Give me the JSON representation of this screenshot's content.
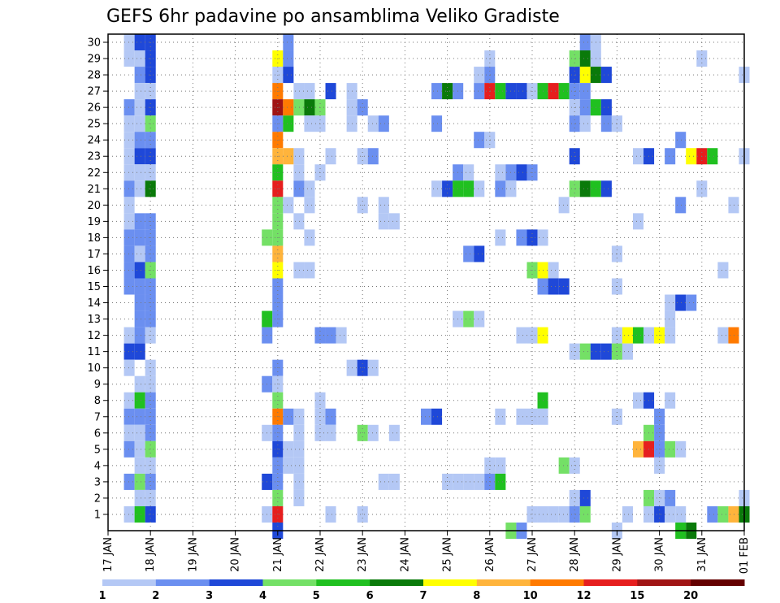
{
  "chart_data": {
    "type": "heatmap",
    "title": "GEFS 6hr padavine po ansamblima Veliko Gradiste",
    "x_tick_labels": [
      "17 JAN",
      "18 JAN",
      "19 JAN",
      "20 JAN",
      "21 JAN",
      "22 JAN",
      "23 JAN",
      "24 JAN",
      "25 JAN",
      "26 JAN",
      "27 JAN",
      "28 JAN",
      "29 JAN",
      "30 JAN",
      "31 JAN",
      "01 FEB"
    ],
    "x_range_days": [
      17,
      32
    ],
    "x_step_hours": 6,
    "y_tick_labels": [
      1,
      2,
      3,
      4,
      5,
      6,
      7,
      8,
      9,
      10,
      11,
      12,
      13,
      14,
      15,
      16,
      17,
      18,
      19,
      20,
      21,
      22,
      23,
      24,
      25,
      26,
      27,
      28,
      29,
      30
    ],
    "grid": true,
    "colorbar": {
      "labels": [
        "1",
        "2",
        "3",
        "4",
        "5",
        "6",
        "7",
        "8",
        "10",
        "12",
        "15",
        "20"
      ],
      "colors": [
        "#b4c8f5",
        "#6b8ff0",
        "#1f48d8",
        "#74e066",
        "#20c020",
        "#0a7a0a",
        "#ffff00",
        "#ffb43c",
        "#ff7a00",
        "#e61e1e",
        "#a01414",
        "#640000"
      ]
    },
    "cells_note": "each entry: [ensemble member, day-of-month (fractional, 6h steps), precipitation class index 1-12]",
    "cells": [
      [
        30,
        17.5,
        1
      ],
      [
        30,
        17.75,
        3
      ],
      [
        30,
        18.0,
        3
      ],
      [
        30,
        21.25,
        2
      ],
      [
        30,
        28.25,
        2
      ],
      [
        30,
        28.5,
        1
      ],
      [
        29,
        17.5,
        1
      ],
      [
        29,
        17.75,
        1
      ],
      [
        29,
        18.0,
        3
      ],
      [
        29,
        21.0,
        7
      ],
      [
        29,
        21.25,
        2
      ],
      [
        29,
        26.0,
        1
      ],
      [
        29,
        28.0,
        4
      ],
      [
        29,
        28.25,
        6
      ],
      [
        29,
        28.5,
        1
      ],
      [
        29,
        31.0,
        1
      ],
      [
        28,
        17.75,
        2
      ],
      [
        28,
        18.0,
        3
      ],
      [
        28,
        21.0,
        1
      ],
      [
        28,
        21.25,
        3
      ],
      [
        28,
        25.75,
        1
      ],
      [
        28,
        26.0,
        2
      ],
      [
        28,
        28.0,
        3
      ],
      [
        28,
        28.25,
        7
      ],
      [
        28,
        28.5,
        6
      ],
      [
        28,
        28.75,
        3
      ],
      [
        28,
        32.0,
        1
      ],
      [
        27,
        17.75,
        1
      ],
      [
        27,
        18.0,
        1
      ],
      [
        27,
        21.0,
        9
      ],
      [
        27,
        21.5,
        1
      ],
      [
        27,
        21.75,
        1
      ],
      [
        27,
        22.25,
        3
      ],
      [
        27,
        22.75,
        1
      ],
      [
        27,
        24.75,
        2
      ],
      [
        27,
        25.0,
        6
      ],
      [
        27,
        25.25,
        2
      ],
      [
        27,
        25.75,
        2
      ],
      [
        27,
        26.0,
        10
      ],
      [
        27,
        26.25,
        5
      ],
      [
        27,
        26.5,
        3
      ],
      [
        27,
        26.75,
        3
      ],
      [
        27,
        27.0,
        1
      ],
      [
        27,
        27.25,
        5
      ],
      [
        27,
        27.5,
        10
      ],
      [
        27,
        27.75,
        5
      ],
      [
        27,
        28.0,
        2
      ],
      [
        27,
        28.25,
        2
      ],
      [
        26,
        17.5,
        2
      ],
      [
        26,
        17.75,
        1
      ],
      [
        26,
        18.0,
        3
      ],
      [
        26,
        21.0,
        11
      ],
      [
        26,
        21.25,
        9
      ],
      [
        26,
        21.5,
        4
      ],
      [
        26,
        21.75,
        6
      ],
      [
        26,
        22.0,
        4
      ],
      [
        26,
        22.75,
        1
      ],
      [
        26,
        23.0,
        2
      ],
      [
        26,
        28.0,
        1
      ],
      [
        26,
        28.25,
        2
      ],
      [
        26,
        28.5,
        5
      ],
      [
        26,
        28.75,
        3
      ],
      [
        25,
        17.5,
        1
      ],
      [
        25,
        17.75,
        1
      ],
      [
        25,
        18.0,
        4
      ],
      [
        25,
        21.0,
        2
      ],
      [
        25,
        21.25,
        5
      ],
      [
        25,
        21.75,
        1
      ],
      [
        25,
        22.0,
        1
      ],
      [
        25,
        22.75,
        1
      ],
      [
        25,
        23.25,
        1
      ],
      [
        25,
        23.5,
        2
      ],
      [
        25,
        24.75,
        2
      ],
      [
        25,
        28.0,
        2
      ],
      [
        25,
        28.25,
        1
      ],
      [
        25,
        28.75,
        2
      ],
      [
        25,
        29.0,
        1
      ],
      [
        24,
        17.5,
        1
      ],
      [
        24,
        17.75,
        2
      ],
      [
        24,
        18.0,
        2
      ],
      [
        24,
        21.0,
        9
      ],
      [
        24,
        25.75,
        2
      ],
      [
        24,
        26.0,
        1
      ],
      [
        24,
        30.5,
        2
      ],
      [
        23,
        17.5,
        1
      ],
      [
        23,
        17.75,
        3
      ],
      [
        23,
        18.0,
        3
      ],
      [
        23,
        21.0,
        8
      ],
      [
        23,
        21.25,
        8
      ],
      [
        23,
        21.5,
        1
      ],
      [
        23,
        22.25,
        1
      ],
      [
        23,
        23.0,
        1
      ],
      [
        23,
        23.25,
        2
      ],
      [
        23,
        28.0,
        3
      ],
      [
        23,
        29.5,
        1
      ],
      [
        23,
        29.75,
        3
      ],
      [
        23,
        30.25,
        2
      ],
      [
        23,
        30.75,
        7
      ],
      [
        23,
        31.0,
        10
      ],
      [
        23,
        31.25,
        5
      ],
      [
        23,
        32.0,
        1
      ],
      [
        22,
        17.5,
        1
      ],
      [
        22,
        17.75,
        1
      ],
      [
        22,
        18.0,
        1
      ],
      [
        22,
        21.0,
        5
      ],
      [
        22,
        21.5,
        1
      ],
      [
        22,
        22.0,
        1
      ],
      [
        22,
        25.25,
        2
      ],
      [
        22,
        25.5,
        1
      ],
      [
        22,
        26.25,
        1
      ],
      [
        22,
        26.5,
        2
      ],
      [
        22,
        26.75,
        3
      ],
      [
        22,
        27.0,
        2
      ],
      [
        21,
        17.5,
        2
      ],
      [
        21,
        17.75,
        1
      ],
      [
        21,
        18.0,
        6
      ],
      [
        21,
        21.0,
        10
      ],
      [
        21,
        21.5,
        2
      ],
      [
        21,
        21.75,
        1
      ],
      [
        21,
        24.75,
        1
      ],
      [
        21,
        25.0,
        3
      ],
      [
        21,
        25.25,
        5
      ],
      [
        21,
        25.5,
        5
      ],
      [
        21,
        25.75,
        1
      ],
      [
        21,
        26.25,
        2
      ],
      [
        21,
        26.5,
        1
      ],
      [
        21,
        28.0,
        4
      ],
      [
        21,
        28.25,
        6
      ],
      [
        21,
        28.5,
        5
      ],
      [
        21,
        28.75,
        3
      ],
      [
        21,
        31.0,
        1
      ],
      [
        20,
        17.5,
        1
      ],
      [
        20,
        21.0,
        4
      ],
      [
        20,
        21.25,
        1
      ],
      [
        20,
        21.75,
        1
      ],
      [
        20,
        23.0,
        1
      ],
      [
        20,
        23.5,
        1
      ],
      [
        20,
        27.75,
        1
      ],
      [
        20,
        30.5,
        2
      ],
      [
        20,
        31.75,
        1
      ],
      [
        19,
        17.5,
        1
      ],
      [
        19,
        17.75,
        2
      ],
      [
        19,
        18.0,
        2
      ],
      [
        19,
        21.0,
        4
      ],
      [
        19,
        21.5,
        1
      ],
      [
        19,
        23.5,
        1
      ],
      [
        19,
        23.75,
        1
      ],
      [
        19,
        29.5,
        1
      ],
      [
        18,
        17.5,
        2
      ],
      [
        18,
        17.75,
        2
      ],
      [
        18,
        18.0,
        2
      ],
      [
        18,
        20.75,
        4
      ],
      [
        18,
        21.0,
        4
      ],
      [
        18,
        21.75,
        1
      ],
      [
        18,
        26.25,
        1
      ],
      [
        18,
        26.75,
        2
      ],
      [
        18,
        27.0,
        3
      ],
      [
        18,
        27.25,
        1
      ],
      [
        17,
        17.5,
        2
      ],
      [
        17,
        17.75,
        1
      ],
      [
        17,
        18.0,
        2
      ],
      [
        17,
        21.0,
        8
      ],
      [
        17,
        25.5,
        2
      ],
      [
        17,
        25.75,
        3
      ],
      [
        17,
        29.0,
        1
      ],
      [
        16,
        17.5,
        2
      ],
      [
        16,
        17.75,
        3
      ],
      [
        16,
        18.0,
        4
      ],
      [
        16,
        21.0,
        7
      ],
      [
        16,
        21.5,
        1
      ],
      [
        16,
        21.75,
        1
      ],
      [
        16,
        27.0,
        4
      ],
      [
        16,
        27.25,
        7
      ],
      [
        16,
        27.5,
        1
      ],
      [
        16,
        31.5,
        1
      ],
      [
        15,
        17.5,
        2
      ],
      [
        15,
        17.75,
        2
      ],
      [
        15,
        18.0,
        2
      ],
      [
        15,
        21.0,
        2
      ],
      [
        15,
        27.25,
        2
      ],
      [
        15,
        27.5,
        3
      ],
      [
        15,
        27.75,
        3
      ],
      [
        15,
        29.0,
        1
      ],
      [
        14,
        17.75,
        2
      ],
      [
        14,
        18.0,
        2
      ],
      [
        14,
        21.0,
        2
      ],
      [
        14,
        30.25,
        1
      ],
      [
        14,
        30.5,
        3
      ],
      [
        14,
        30.75,
        2
      ],
      [
        13,
        17.75,
        2
      ],
      [
        13,
        18.0,
        2
      ],
      [
        13,
        20.75,
        5
      ],
      [
        13,
        21.0,
        2
      ],
      [
        13,
        25.25,
        1
      ],
      [
        13,
        25.5,
        4
      ],
      [
        13,
        25.75,
        1
      ],
      [
        13,
        30.25,
        1
      ],
      [
        12,
        17.5,
        1
      ],
      [
        12,
        17.75,
        2
      ],
      [
        12,
        18.0,
        1
      ],
      [
        12,
        20.75,
        2
      ],
      [
        12,
        22.0,
        2
      ],
      [
        12,
        22.25,
        2
      ],
      [
        12,
        22.5,
        1
      ],
      [
        12,
        26.75,
        1
      ],
      [
        12,
        27.0,
        1
      ],
      [
        12,
        27.25,
        7
      ],
      [
        12,
        29.0,
        1
      ],
      [
        12,
        29.25,
        7
      ],
      [
        12,
        29.5,
        5
      ],
      [
        12,
        29.75,
        1
      ],
      [
        12,
        30.0,
        7
      ],
      [
        12,
        30.25,
        1
      ],
      [
        12,
        31.5,
        1
      ],
      [
        12,
        31.75,
        9
      ],
      [
        11,
        17.5,
        3
      ],
      [
        11,
        17.75,
        3
      ],
      [
        11,
        28.0,
        1
      ],
      [
        11,
        28.25,
        4
      ],
      [
        11,
        28.5,
        3
      ],
      [
        11,
        28.75,
        3
      ],
      [
        11,
        29.0,
        4
      ],
      [
        11,
        29.25,
        1
      ],
      [
        10,
        17.5,
        1
      ],
      [
        10,
        18.0,
        1
      ],
      [
        10,
        21.0,
        2
      ],
      [
        10,
        22.75,
        1
      ],
      [
        10,
        23.0,
        3
      ],
      [
        10,
        23.25,
        1
      ],
      [
        9,
        17.75,
        1
      ],
      [
        9,
        18.0,
        1
      ],
      [
        9,
        20.75,
        2
      ],
      [
        9,
        21.0,
        1
      ],
      [
        8,
        17.5,
        1
      ],
      [
        8,
        17.75,
        5
      ],
      [
        8,
        18.0,
        2
      ],
      [
        8,
        21.0,
        4
      ],
      [
        8,
        22.0,
        1
      ],
      [
        8,
        27.25,
        5
      ],
      [
        8,
        29.5,
        1
      ],
      [
        8,
        29.75,
        3
      ],
      [
        8,
        30.25,
        1
      ],
      [
        7,
        17.5,
        2
      ],
      [
        7,
        17.75,
        2
      ],
      [
        7,
        18.0,
        2
      ],
      [
        7,
        21.0,
        9
      ],
      [
        7,
        21.25,
        2
      ],
      [
        7,
        21.5,
        1
      ],
      [
        7,
        22.0,
        1
      ],
      [
        7,
        22.25,
        2
      ],
      [
        7,
        24.5,
        2
      ],
      [
        7,
        24.75,
        3
      ],
      [
        7,
        26.25,
        1
      ],
      [
        7,
        26.75,
        1
      ],
      [
        7,
        27.0,
        1
      ],
      [
        7,
        27.25,
        1
      ],
      [
        7,
        29.0,
        1
      ],
      [
        7,
        30.0,
        2
      ],
      [
        6,
        17.5,
        1
      ],
      [
        6,
        17.75,
        1
      ],
      [
        6,
        18.0,
        2
      ],
      [
        6,
        20.75,
        1
      ],
      [
        6,
        21.0,
        2
      ],
      [
        6,
        21.5,
        1
      ],
      [
        6,
        22.0,
        1
      ],
      [
        6,
        22.25,
        1
      ],
      [
        6,
        23.0,
        4
      ],
      [
        6,
        23.25,
        1
      ],
      [
        6,
        23.75,
        1
      ],
      [
        6,
        29.75,
        4
      ],
      [
        6,
        30.0,
        2
      ],
      [
        5,
        17.5,
        2
      ],
      [
        5,
        17.75,
        1
      ],
      [
        5,
        18.0,
        4
      ],
      [
        5,
        21.0,
        3
      ],
      [
        5,
        21.25,
        1
      ],
      [
        5,
        21.5,
        1
      ],
      [
        5,
        29.5,
        8
      ],
      [
        5,
        29.75,
        10
      ],
      [
        5,
        30.0,
        2
      ],
      [
        5,
        30.25,
        4
      ],
      [
        5,
        30.5,
        1
      ],
      [
        4,
        17.75,
        1
      ],
      [
        4,
        18.0,
        1
      ],
      [
        4,
        21.0,
        2
      ],
      [
        4,
        21.25,
        1
      ],
      [
        4,
        21.5,
        1
      ],
      [
        4,
        26.0,
        1
      ],
      [
        4,
        26.25,
        1
      ],
      [
        4,
        27.75,
        4
      ],
      [
        4,
        28.0,
        1
      ],
      [
        4,
        30.0,
        1
      ],
      [
        3,
        17.5,
        2
      ],
      [
        3,
        17.75,
        4
      ],
      [
        3,
        18.0,
        2
      ],
      [
        3,
        20.75,
        3
      ],
      [
        3,
        21.0,
        2
      ],
      [
        3,
        21.5,
        1
      ],
      [
        3,
        23.5,
        1
      ],
      [
        3,
        23.75,
        1
      ],
      [
        3,
        25.0,
        1
      ],
      [
        3,
        25.25,
        1
      ],
      [
        3,
        25.5,
        1
      ],
      [
        3,
        25.75,
        1
      ],
      [
        3,
        26.0,
        2
      ],
      [
        3,
        26.25,
        5
      ],
      [
        2,
        17.75,
        1
      ],
      [
        2,
        18.0,
        1
      ],
      [
        2,
        21.0,
        4
      ],
      [
        2,
        21.5,
        1
      ],
      [
        2,
        28.0,
        1
      ],
      [
        2,
        28.25,
        3
      ],
      [
        2,
        29.75,
        4
      ],
      [
        2,
        30.0,
        1
      ],
      [
        2,
        30.25,
        2
      ],
      [
        2,
        32.0,
        1
      ],
      [
        1,
        17.5,
        1
      ],
      [
        1,
        17.75,
        5
      ],
      [
        1,
        18.0,
        3
      ],
      [
        1,
        20.75,
        1
      ],
      [
        1,
        21.0,
        10
      ],
      [
        1,
        22.25,
        1
      ],
      [
        1,
        23.0,
        1
      ],
      [
        1,
        27.0,
        1
      ],
      [
        1,
        27.25,
        1
      ],
      [
        1,
        27.5,
        1
      ],
      [
        1,
        27.75,
        1
      ],
      [
        1,
        28.0,
        2
      ],
      [
        1,
        28.25,
        4
      ],
      [
        1,
        29.25,
        1
      ],
      [
        1,
        29.75,
        1
      ],
      [
        1,
        30.0,
        3
      ],
      [
        1,
        30.25,
        1
      ],
      [
        1,
        30.5,
        1
      ],
      [
        1,
        31.25,
        2
      ],
      [
        1,
        31.5,
        4
      ],
      [
        1,
        31.75,
        8
      ],
      [
        1,
        32.0,
        6
      ],
      [
        0,
        21.0,
        3
      ],
      [
        0,
        26.5,
        4
      ],
      [
        0,
        26.75,
        2
      ],
      [
        0,
        29.0,
        1
      ],
      [
        0,
        30.5,
        5
      ],
      [
        0,
        30.75,
        6
      ]
    ]
  }
}
